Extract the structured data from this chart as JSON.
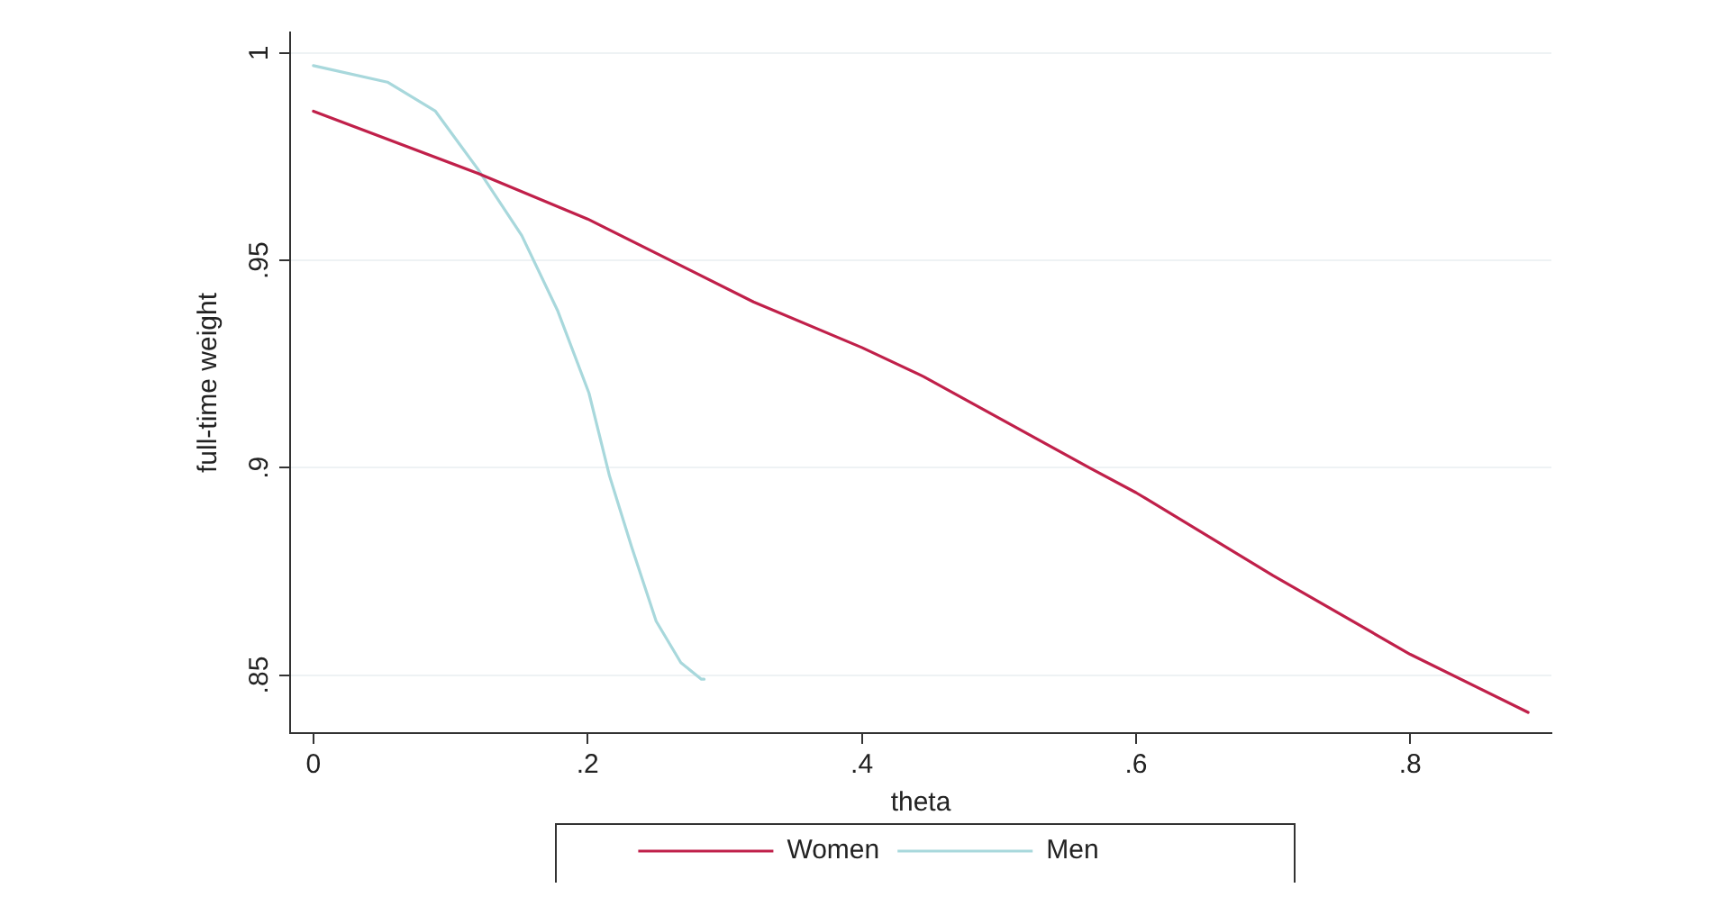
{
  "chart_data": {
    "type": "line",
    "xlabel": "theta",
    "ylabel": "full-time weight",
    "xlim": [
      -0.017,
      0.903
    ],
    "ylim": [
      0.836,
      1.005
    ],
    "xticks": [
      0,
      {
        "value": 0.2,
        "label": ".2"
      },
      {
        "value": 0.4,
        "label": ".4"
      },
      {
        "value": 0.6,
        "label": ".6"
      },
      {
        "value": 0.8,
        "label": ".8"
      }
    ],
    "yticks": [
      {
        "value": 0.85,
        "label": ".85"
      },
      {
        "value": 0.9,
        "label": ".9"
      },
      {
        "value": 0.95,
        "label": ".95"
      },
      1
    ],
    "grid": "y",
    "legend": "bottom",
    "marker": "none",
    "line_style": "solid",
    "series": [
      {
        "name": "Women",
        "color": "#c0204a",
        "x": [
          0,
          0.12,
          0.2,
          0.321,
          0.4,
          0.445,
          0.566,
          0.6,
          0.7,
          0.8,
          0.886
        ],
        "values": [
          0.986,
          0.971,
          0.96,
          0.94,
          0.929,
          0.922,
          0.9,
          0.894,
          0.874,
          0.855,
          0.841
        ]
      },
      {
        "name": "Men",
        "color": "#a8d8dc",
        "x": [
          0,
          0.054,
          0.089,
          0.12,
          0.152,
          0.178,
          0.201,
          0.216,
          0.232,
          0.25,
          0.268,
          0.283,
          0.285
        ],
        "values": [
          0.997,
          0.993,
          0.986,
          0.972,
          0.956,
          0.938,
          0.918,
          0.898,
          0.881,
          0.863,
          0.853,
          0.849,
          0.849
        ]
      }
    ]
  }
}
